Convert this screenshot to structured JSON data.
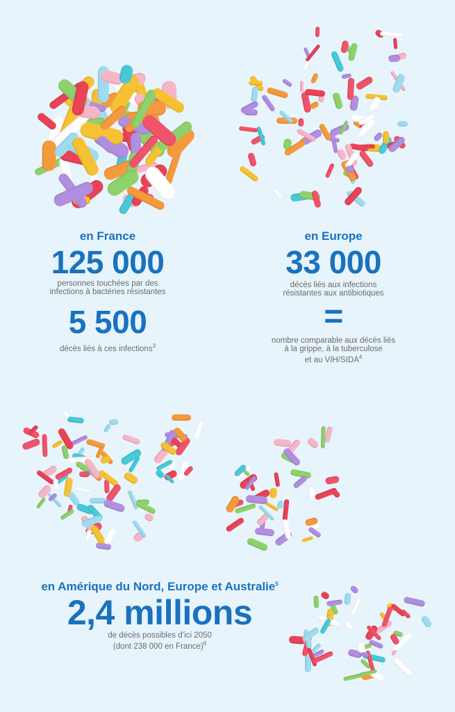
{
  "france": {
    "heading": "en France",
    "number1": "125 000",
    "desc1_line1": "personnes touchées par des",
    "desc1_line2": "infections à bactéries résistantes",
    "number2": "5 500",
    "desc2": "décès liés à ces infections",
    "desc2_note": "3"
  },
  "europe": {
    "heading": "en Europe",
    "number": "33 000",
    "desc_line1": "décès liés aux infections",
    "desc_line2": "résistantes aux antibiotiques",
    "equals": "=",
    "compare_line1": "nombre comparable aux décès liés",
    "compare_line2": "à la grippe, à la tuberculose",
    "compare_line3": "et au VIH/SIDA",
    "compare_note": "4"
  },
  "global": {
    "heading": "en Amérique du Nord, Europe et Australie",
    "heading_note": "5",
    "number": "2,4 millions",
    "desc_line1": "de décès possibles d’ici 2050",
    "desc_line2": "(dont 238 000 en France)",
    "desc_note": "6"
  },
  "colors": {
    "background": "#e7f4fc",
    "accent_blue": "#1a72bd",
    "text_gray": "#6b6b6b",
    "pill_palette": [
      "#f0546a",
      "#f7b6c8",
      "#49c8d8",
      "#f6c234",
      "#b08ee0",
      "#9fdcf0",
      "#ffffff",
      "#f59a3c",
      "#8fd16b",
      "#e94357"
    ]
  }
}
